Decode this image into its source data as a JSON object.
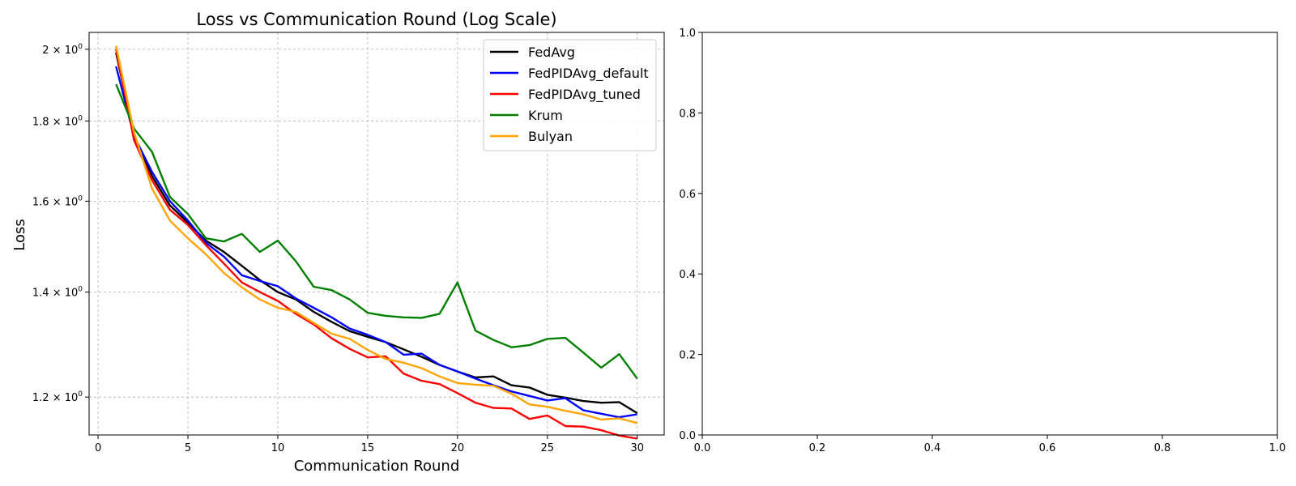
{
  "chart_data": [
    {
      "type": "line",
      "title": "Loss vs Communication Round (Log Scale)",
      "xlabel": "Communication Round",
      "ylabel": "Loss",
      "yscale": "log",
      "xlim": [
        -0.5,
        31.5
      ],
      "ylim": [
        1.135,
        2.05
      ],
      "grid": true,
      "legend_position": "upper-right",
      "x_ticks": [
        0,
        5,
        10,
        15,
        20,
        25,
        30
      ],
      "x_tick_labels": [
        "0",
        "5",
        "10",
        "15",
        "20",
        "25",
        "30"
      ],
      "y_ticks": [
        1.2,
        1.4,
        1.6,
        1.8,
        2.0
      ],
      "y_tick_labels": [
        {
          "base": "1.2 × 10",
          "exp": "0"
        },
        {
          "base": "1.4 × 10",
          "exp": "0"
        },
        {
          "base": "1.6 × 10",
          "exp": "0"
        },
        {
          "base": "1.8 × 10",
          "exp": "0"
        },
        {
          "base": "2 × 10",
          "exp": "0"
        }
      ],
      "x": [
        1,
        2,
        3,
        4,
        5,
        6,
        7,
        8,
        9,
        10,
        11,
        12,
        13,
        14,
        15,
        16,
        17,
        18,
        19,
        20,
        21,
        22,
        23,
        24,
        25,
        26,
        27,
        28,
        29,
        30
      ],
      "series": [
        {
          "name": "FedAvg",
          "color": "#000000",
          "values": [
            1.99,
            1.76,
            1.66,
            1.59,
            1.55,
            1.51,
            1.485,
            1.455,
            1.425,
            1.4,
            1.385,
            1.36,
            1.34,
            1.322,
            1.311,
            1.301,
            1.287,
            1.273,
            1.258,
            1.246,
            1.235,
            1.237,
            1.221,
            1.217,
            1.204,
            1.199,
            1.193,
            1.19,
            1.191,
            1.172
          ]
        },
        {
          "name": "FedPIDAvg_default",
          "color": "#0000ff",
          "values": [
            1.95,
            1.76,
            1.67,
            1.6,
            1.555,
            1.505,
            1.475,
            1.435,
            1.423,
            1.412,
            1.387,
            1.368,
            1.349,
            1.327,
            1.315,
            1.301,
            1.277,
            1.279,
            1.258,
            1.246,
            1.233,
            1.221,
            1.21,
            1.202,
            1.194,
            1.198,
            1.177,
            1.171,
            1.165,
            1.17
          ]
        },
        {
          "name": "FedPIDAvg_tuned",
          "color": "#ff0000",
          "values": [
            2.0,
            1.75,
            1.65,
            1.58,
            1.545,
            1.5,
            1.46,
            1.42,
            1.4,
            1.382,
            1.356,
            1.335,
            1.308,
            1.288,
            1.272,
            1.274,
            1.242,
            1.229,
            1.223,
            1.207,
            1.19,
            1.181,
            1.18,
            1.162,
            1.168,
            1.15,
            1.149,
            1.143,
            1.134,
            1.129
          ]
        },
        {
          "name": "Krum",
          "color": "#008000",
          "values": [
            1.9,
            1.78,
            1.72,
            1.61,
            1.57,
            1.515,
            1.508,
            1.525,
            1.485,
            1.51,
            1.465,
            1.411,
            1.404,
            1.385,
            1.358,
            1.352,
            1.349,
            1.348,
            1.356,
            1.42,
            1.323,
            1.305,
            1.291,
            1.295,
            1.307,
            1.309,
            1.281,
            1.253,
            1.278,
            1.233
          ]
        },
        {
          "name": "Bulyan",
          "color": "#ffa500",
          "values": [
            2.01,
            1.77,
            1.63,
            1.555,
            1.515,
            1.48,
            1.44,
            1.41,
            1.385,
            1.368,
            1.36,
            1.338,
            1.317,
            1.307,
            1.286,
            1.269,
            1.262,
            1.252,
            1.237,
            1.225,
            1.222,
            1.22,
            1.206,
            1.187,
            1.183,
            1.176,
            1.17,
            1.161,
            1.163,
            1.155
          ]
        }
      ]
    },
    {
      "type": "line",
      "title": "",
      "xlabel": "",
      "ylabel": "",
      "xlim": [
        0,
        1
      ],
      "ylim": [
        0,
        1
      ],
      "grid": false,
      "x_ticks": [
        0,
        0.2,
        0.4,
        0.6,
        0.8,
        1.0
      ],
      "x_tick_labels": [
        "0.0",
        "0.2",
        "0.4",
        "0.6",
        "0.8",
        "1.0"
      ],
      "y_ticks": [
        0,
        0.2,
        0.4,
        0.6,
        0.8,
        1.0
      ],
      "y_tick_labels": [
        "0.0",
        "0.2",
        "0.4",
        "0.6",
        "0.8",
        "1.0"
      ],
      "series": []
    }
  ]
}
